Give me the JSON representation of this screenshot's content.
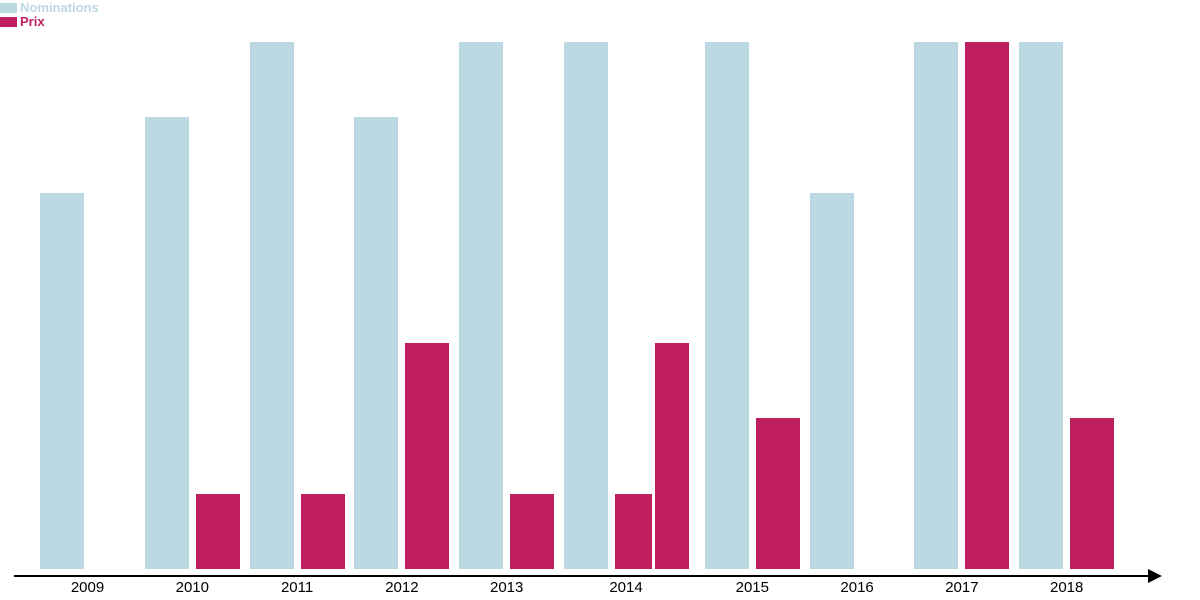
{
  "chart_data": {
    "type": "bar",
    "title": "",
    "xlabel": "",
    "ylabel": "",
    "categories": [
      "2009",
      "2010",
      "2011",
      "2012",
      "2013",
      "2014",
      "2015",
      "2016",
      "2017",
      "2018"
    ],
    "series": [
      {
        "name": "Nominations",
        "color": "#bcd8e3",
        "values": [
          5,
          6,
          7,
          6,
          7,
          7,
          7,
          5,
          7,
          7
        ]
      },
      {
        "name": "Prix",
        "color": "#c01f5f",
        "values": [
          0,
          1,
          1,
          3,
          1,
          1,
          2,
          0,
          7,
          2
        ]
      }
    ],
    "extra_bars": [
      {
        "category": "2014",
        "series": "Prix",
        "value": 3
      }
    ],
    "ylim": [
      0,
      7
    ],
    "grid": false,
    "legend_position": "top-left",
    "background": "#ffffff",
    "axis": {
      "x_arrow": "right",
      "color": "#000000"
    }
  }
}
